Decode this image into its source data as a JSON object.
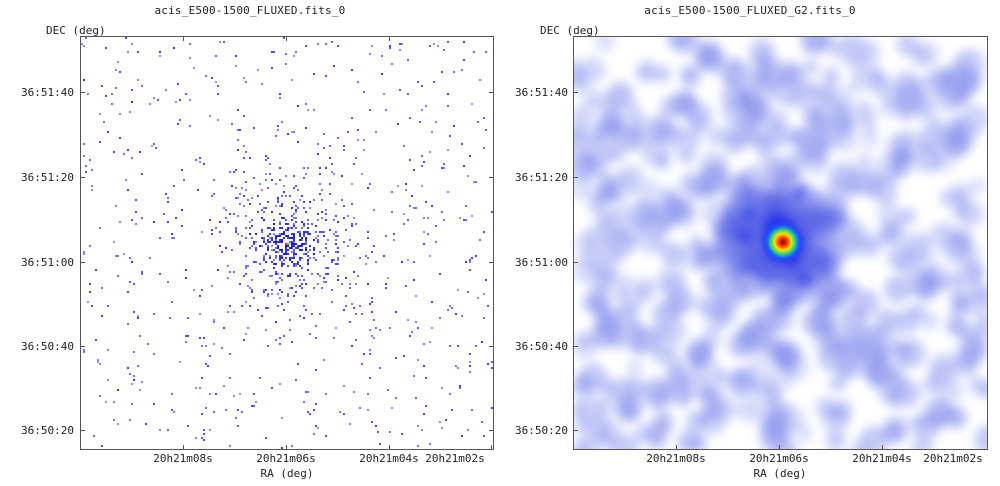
{
  "panels": [
    {
      "title": "acis_E500-1500_FLUXED.fits_0",
      "y_axis_label": "DEC (deg)",
      "x_axis_label": "RA (deg)",
      "y_ticks": [
        "36:51:40",
        "36:51:20",
        "36:51:00",
        "36:50:40",
        "36:50:20"
      ],
      "x_ticks": [
        "20h21m08s",
        "20h21m06s",
        "20h21m04s",
        "20h21m02s"
      ],
      "style": "raw event counts (sparse pixels)"
    },
    {
      "title": "acis_E500-1500_FLUXED_G2.fits_0",
      "y_axis_label": "DEC (deg)",
      "x_axis_label": "RA (deg)",
      "y_ticks": [
        "36:51:40",
        "36:51:20",
        "36:51:00",
        "36:50:40",
        "36:50:20"
      ],
      "x_ticks": [
        "20h21m08s",
        "20h21m06s",
        "20h21m04s",
        "20h21m02s"
      ],
      "style": "gaussian smoothed"
    }
  ],
  "colors": {
    "pixel": "#3a3ae6",
    "smooth": "#8c96ee",
    "core_yellow": "#ffe000",
    "core_red": "#ff2a00",
    "core_green": "#2ed67a",
    "axis": "#555555"
  }
}
